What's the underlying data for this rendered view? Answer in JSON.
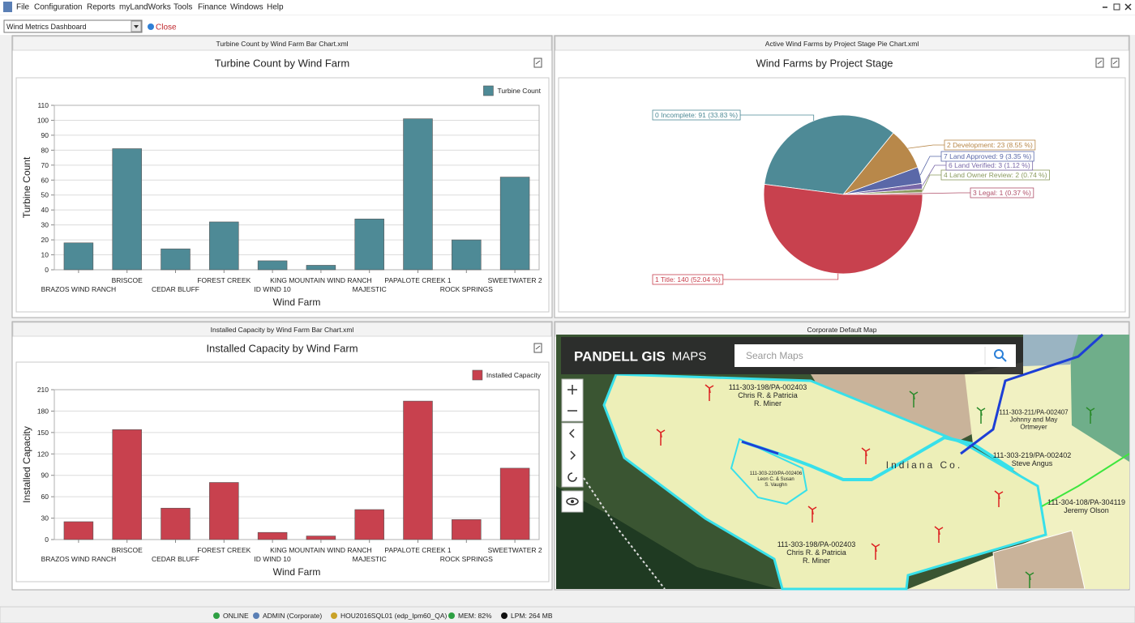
{
  "menu": [
    "File",
    "Configuration",
    "Reports",
    "myLandWorks",
    "Tools",
    "Finance",
    "Windows",
    "Help"
  ],
  "toolbar": {
    "dashboard": "Wind Metrics Dashboard",
    "close": "Close"
  },
  "chart_data": [
    {
      "type": "bar",
      "panel_title": "Turbine Count by Wind Farm Bar Chart.xml",
      "title": "Turbine Count by Wind Farm",
      "x_label": "Wind Farm",
      "y_label": "Turbine Count",
      "legend": "top-right",
      "series": [
        {
          "name": "Turbine Count",
          "color": "#4e8a96",
          "values": [
            18,
            81,
            14,
            32,
            6,
            3,
            34,
            101,
            20,
            62
          ]
        }
      ],
      "categories": [
        "BRAZOS WIND RANCH",
        "BRISCOE",
        "CEDAR BLUFF",
        "FOREST CREEK",
        "ID WIND 10",
        "KING MOUNTAIN WIND RANCH",
        "MAJESTIC",
        "PAPALOTE CREEK 1",
        "ROCK SPRINGS",
        "SWEETWATER 2"
      ],
      "ylim": [
        0,
        110
      ],
      "yticks": [
        0,
        10,
        20,
        30,
        40,
        50,
        60,
        70,
        80,
        90,
        100,
        110
      ],
      "grid": true
    },
    {
      "type": "pie",
      "panel_title": "Active Wind Farms by Project Stage Pie Chart.xml",
      "title": "Wind Farms by Project Stage",
      "values": [
        1,
        2,
        3,
        9,
        23,
        91,
        140
      ],
      "value_labels": [
        "3 Legal: 1 (0.37 %)",
        "4 Land Owner Review: 2 (0.74 %)",
        "6 Land Verified: 3 (1.12 %)",
        "7 Land Approved: 9 (3.35 %)",
        "2 Development: 23 (8.55 %)",
        "0 Incomplete: 91 (33.83 %)",
        "1 Title: 140 (52.04 %)"
      ],
      "colors": [
        "#b0506a",
        "#8a9a5e",
        "#7a68a8",
        "#5a68a8",
        "#b8884a",
        "#4e8a96",
        "#c8414e"
      ]
    },
    {
      "type": "bar",
      "panel_title": "Installed Capacity by Wind Farm Bar Chart.xml",
      "title": "Installed Capacity by Wind Farm",
      "x_label": "Wind Farm",
      "y_label": "Installed Capacity",
      "legend": "top-right",
      "series": [
        {
          "name": "Installed Capacity",
          "color": "#c8414e",
          "values": [
            25,
            154,
            44,
            80,
            10,
            5,
            42,
            194,
            28,
            100
          ]
        }
      ],
      "categories": [
        "BRAZOS WIND RANCH",
        "BRISCOE",
        "CEDAR BLUFF",
        "FOREST CREEK",
        "ID WIND 10",
        "KING MOUNTAIN WIND RANCH",
        "MAJESTIC",
        "PAPALOTE CREEK 1",
        "ROCK SPRINGS",
        "SWEETWATER 2"
      ],
      "ylim": [
        0,
        210
      ],
      "yticks": [
        0,
        30,
        60,
        90,
        120,
        150,
        180,
        210
      ],
      "grid": true
    }
  ],
  "map": {
    "panel_title": "Corporate Default Map",
    "brand": "PANDELL GIS",
    "brand_suffix": "MAPS",
    "search_placeholder": "Search Maps",
    "county": "Indiana Co.",
    "parcels": [
      {
        "lines": [
          "111-303-198/PA-002403",
          "Chris R. & Patricia",
          "R. Miner"
        ]
      },
      {
        "lines": [
          "111-303-220/PA-002406",
          "Leon C. & Susan",
          "S. Vaughn"
        ]
      },
      {
        "lines": [
          "111-303-211/PA-002407",
          "Johnny and May",
          "Ortmeyer"
        ]
      },
      {
        "lines": [
          "111-303-219/PA-002402",
          "Steve Angus"
        ]
      },
      {
        "lines": [
          "111-304-108/PA-304119",
          "Jeremy Olson"
        ]
      },
      {
        "lines": [
          "111-303-198/PA-002403",
          "Chris R. & Patricia",
          "R. Miner"
        ]
      }
    ]
  },
  "status": [
    "ONLINE",
    "ADMIN (Corporate)",
    "HOU2016SQL01 (edp_lpm60_QA)",
    "MEM: 82%",
    "LPM: 264 MB"
  ]
}
